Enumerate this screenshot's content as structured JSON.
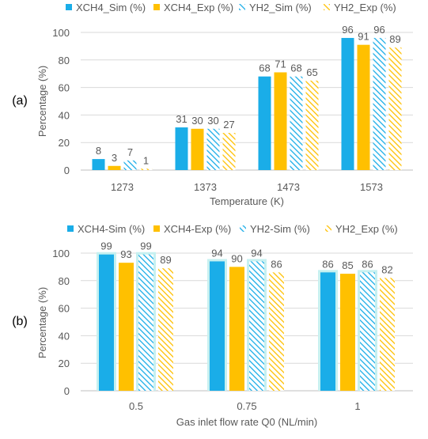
{
  "colors": {
    "xch4_sim": "#1AADE8",
    "xch4_exp": "#FFC000",
    "yh2_sim": "#1AADE8",
    "yh2_exp": "#FFC000",
    "axis_text": "#595959",
    "grid": "#D9D9D9",
    "highlight": "#C6F0F0"
  },
  "chart_data": [
    {
      "panel_label": "(a)",
      "type": "bar",
      "categories": [
        "1273",
        "1373",
        "1473",
        "1573"
      ],
      "series": [
        {
          "name": "XCH4_Sim (%)",
          "values": [
            8,
            31,
            68,
            96
          ],
          "pattern": "solid",
          "color_key": "xch4_sim"
        },
        {
          "name": "XCH4_Exp (%)",
          "values": [
            3,
            30,
            71,
            91
          ],
          "pattern": "solid",
          "color_key": "xch4_exp"
        },
        {
          "name": "YH2_Sim (%)",
          "values": [
            7,
            30,
            68,
            96
          ],
          "pattern": "hatch",
          "color_key": "yh2_sim"
        },
        {
          "name": "YH2_Exp (%)",
          "values": [
            1,
            27,
            65,
            89
          ],
          "pattern": "hatch",
          "color_key": "yh2_exp"
        }
      ],
      "data_labels": [
        [
          "8",
          "31",
          "68",
          "96"
        ],
        [
          "3",
          "30",
          "71",
          "91"
        ],
        [
          "7",
          "30",
          "68",
          "96"
        ],
        [
          "1",
          "27",
          "65",
          "89"
        ]
      ],
      "yticks": [
        "0",
        "20",
        "40",
        "60",
        "80",
        "100"
      ],
      "ylim": [
        0,
        100
      ],
      "xlabel": "Temperature (K)",
      "ylabel": "Percentage (%)",
      "grid": true,
      "legend": "top"
    },
    {
      "panel_label": "(b)",
      "type": "bar",
      "categories": [
        "0.5",
        "0.75",
        "1"
      ],
      "series": [
        {
          "name": "XCH4-Sim (%)",
          "values": [
            99,
            94,
            86
          ],
          "pattern": "solid",
          "color_key": "xch4_sim"
        },
        {
          "name": "XCH4-Exp (%)",
          "values": [
            93,
            90,
            85
          ],
          "pattern": "solid",
          "color_key": "xch4_exp"
        },
        {
          "name": "YH2-Sim (%)",
          "values": [
            99,
            94,
            86
          ],
          "pattern": "hatch",
          "color_key": "yh2_sim"
        },
        {
          "name": "YH2_Exp (%)",
          "values": [
            89,
            86,
            82
          ],
          "pattern": "hatch",
          "color_key": "yh2_exp"
        }
      ],
      "data_labels": [
        [
          "99",
          "94",
          "86"
        ],
        [
          "93",
          "90",
          "85"
        ],
        [
          "99",
          "94",
          "86"
        ],
        [
          "89",
          "86",
          "82"
        ]
      ],
      "yticks": [
        "0",
        "20",
        "40",
        "60",
        "80",
        "100"
      ],
      "ylim": [
        0,
        100
      ],
      "xlabel": "Gas inlet flow rate Q0 (NL/min)",
      "ylabel": "Percentage (%)",
      "grid": true,
      "legend": "top"
    }
  ]
}
